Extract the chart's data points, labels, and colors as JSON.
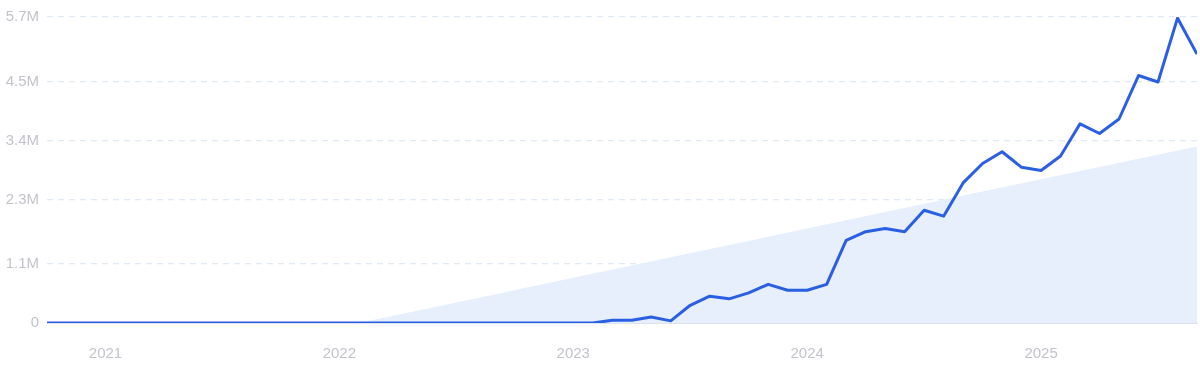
{
  "chart_data": {
    "type": "line",
    "x": [
      "2020-10",
      "2020-11",
      "2020-12",
      "2021-01",
      "2021-02",
      "2021-03",
      "2021-04",
      "2021-05",
      "2021-06",
      "2021-07",
      "2021-08",
      "2021-09",
      "2021-10",
      "2021-11",
      "2021-12",
      "2022-01",
      "2022-02",
      "2022-03",
      "2022-04",
      "2022-05",
      "2022-06",
      "2022-07",
      "2022-08",
      "2022-09",
      "2022-10",
      "2022-11",
      "2022-12",
      "2023-01",
      "2023-02",
      "2023-03",
      "2023-04",
      "2023-05",
      "2023-06",
      "2023-07",
      "2023-08",
      "2023-09",
      "2023-10",
      "2023-11",
      "2023-12",
      "2024-01",
      "2024-02",
      "2024-03",
      "2024-04",
      "2024-05",
      "2024-06",
      "2024-07",
      "2024-08",
      "2024-09",
      "2024-10",
      "2024-11",
      "2024-12",
      "2025-01",
      "2025-02",
      "2025-03",
      "2025-04",
      "2025-05",
      "2025-06",
      "2025-07",
      "2025-08",
      "2025-09"
    ],
    "series": [
      {
        "type": "area",
        "color": "#e6effb",
        "x": [
          "2022-02",
          "2025-09"
        ],
        "values": [
          0,
          3290000
        ]
      },
      {
        "type": "line",
        "color": "#2b5fe3",
        "values": [
          0,
          0,
          0,
          0,
          0,
          0,
          0,
          0,
          0,
          0,
          0,
          0,
          0,
          0,
          0,
          0,
          0,
          0,
          0,
          0,
          0,
          0,
          0,
          0,
          0,
          0,
          0,
          0,
          0,
          50000,
          50000,
          110000,
          40000,
          330000,
          500000,
          450000,
          560000,
          720000,
          610000,
          610000,
          720000,
          1540000,
          1700000,
          1760000,
          1700000,
          2100000,
          1990000,
          2610000,
          2970000,
          3190000,
          2900000,
          2840000,
          3110000,
          3710000,
          3530000,
          3800000,
          4610000,
          4490000,
          5680000,
          5010000
        ]
      }
    ],
    "xlim": [
      "2020-10",
      "2025-09"
    ],
    "xticks": [
      "2021",
      "2022",
      "2023",
      "2024",
      "2025"
    ],
    "ylim": [
      0,
      5700000
    ],
    "yticks": [
      {
        "value": 0,
        "label": "0"
      },
      {
        "value": 1100000,
        "label": "1.1M"
      },
      {
        "value": 2300000,
        "label": "2.3M"
      },
      {
        "value": 3400000,
        "label": "3.4M"
      },
      {
        "value": 4500000,
        "label": "4.5M"
      },
      {
        "value": 5700000,
        "label": "5.7M"
      }
    ],
    "grid": "y",
    "legend": false,
    "marker": "none",
    "line_style": "solid"
  }
}
